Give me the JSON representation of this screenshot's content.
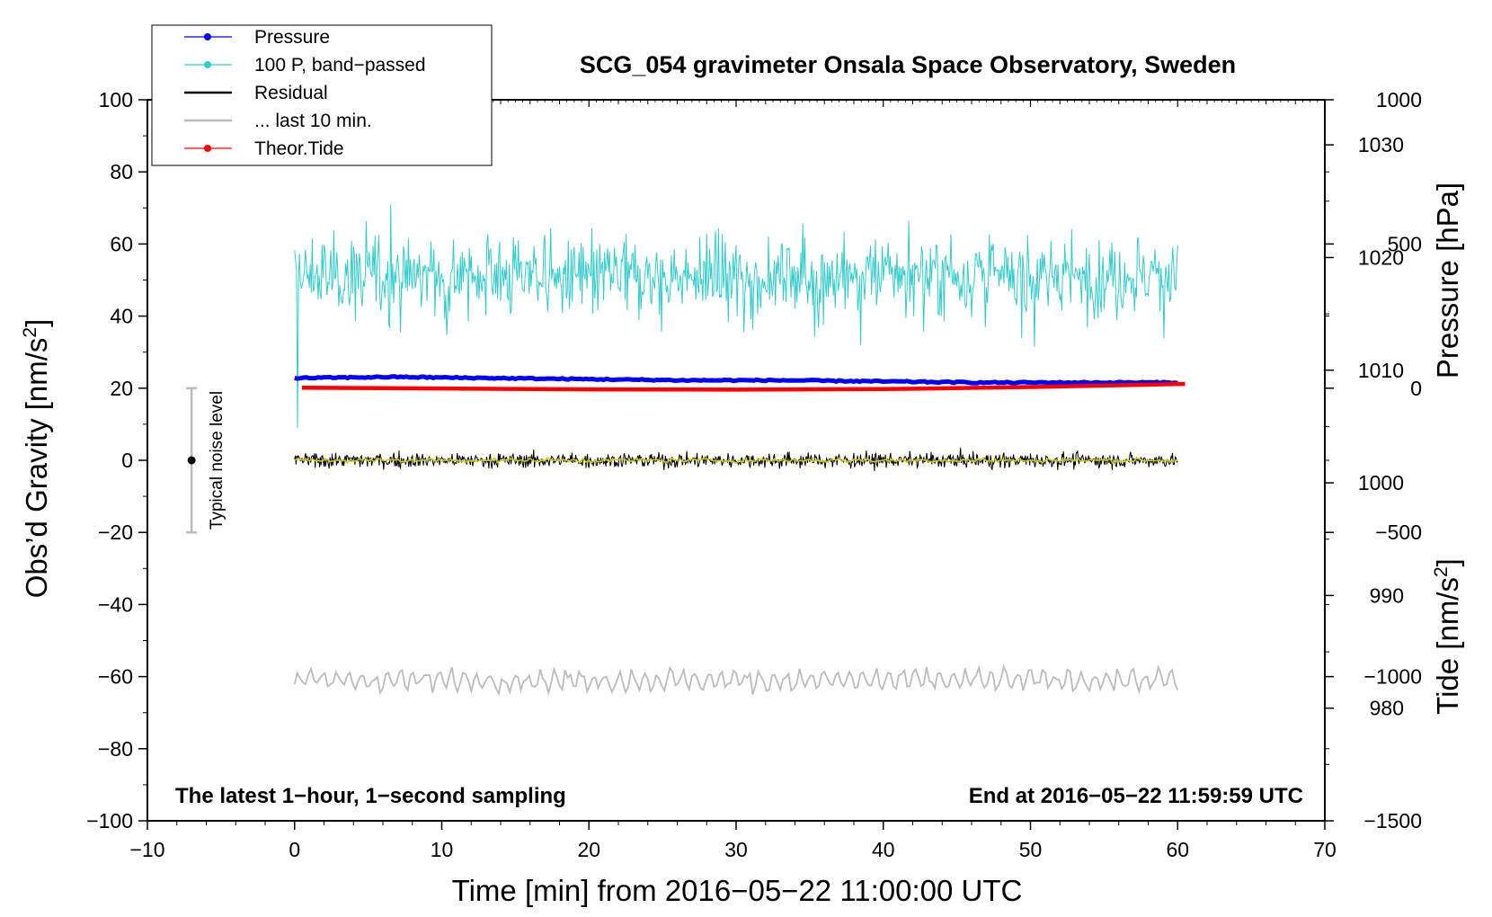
{
  "chart_data": {
    "type": "line",
    "title": "SCG_054 gravimeter Onsala Space Observatory, Sweden",
    "xlabel": "Time [min] from 2016−05−22 11:00:00 UTC",
    "ylabel_left": "Obs’d Gravity [nm/s",
    "ylabel_left_sup": "2",
    "ylabel_left_end": "]",
    "ylabel_right_pressure": "Pressure [hPa]",
    "ylabel_right_tide": "Tide [nm/s",
    "ylabel_right_tide_sup": "2",
    "ylabel_right_tide_end": "]",
    "xlim": [
      -10,
      70
    ],
    "ylim": [
      -100,
      100
    ],
    "pressure_lim": [
      970,
      1034
    ],
    "tide_lim": [
      -1500,
      1000
    ],
    "x_ticks": [
      -10,
      0,
      10,
      20,
      30,
      40,
      50,
      60,
      70
    ],
    "x_tick_labels": [
      "−10",
      "0",
      "10",
      "20",
      "30",
      "40",
      "50",
      "60",
      "70"
    ],
    "y_ticks": [
      -100,
      -80,
      -60,
      -40,
      -20,
      0,
      20,
      40,
      60,
      80,
      100
    ],
    "y_tick_labels": [
      "−100",
      "−80",
      "−60",
      "−40",
      "−20",
      "0",
      "20",
      "40",
      "60",
      "80",
      "100"
    ],
    "pressure_ticks": [
      980,
      990,
      1000,
      1010,
      1020,
      1030
    ],
    "pressure_tick_labels": [
      "980",
      "990",
      "1000",
      "1010",
      "1020",
      "1030"
    ],
    "tide_ticks": [
      -1500,
      -1000,
      -500,
      0,
      500,
      1000
    ],
    "tide_tick_labels": [
      "−1500",
      "−1000",
      "−500",
      "0",
      "500",
      "1000"
    ],
    "note_left": "The latest 1−hour, 1−second sampling",
    "note_right": "End at 2016−05−22 11:59:59 UTC",
    "noise_label": "Typical noise level",
    "noise_bar": {
      "x": -7,
      "center": 0,
      "low": -20,
      "high": 20
    },
    "legend": [
      {
        "label": "Pressure",
        "color": "#0000ff",
        "marker": true
      },
      {
        "label": "100 P, band−passed",
        "color": "#33cccc",
        "marker": true
      },
      {
        "label": "Residual",
        "color": "#000000",
        "marker": false
      },
      {
        "label": "... last 10 min.",
        "color": "#bbbbbb",
        "marker": false
      },
      {
        "label": "Theor.Tide",
        "color": "#ff0000",
        "marker": true
      }
    ],
    "series": [
      {
        "name": "Pressure",
        "color": "#0000ff",
        "axis": "pressure",
        "x_range": [
          0,
          60
        ],
        "values_hPa": [
          1009.3,
          1009.4,
          1009.3,
          1009.2,
          1009.1,
          1009.1,
          1009.0,
          1008.9,
          1008.9,
          1008.9
        ]
      },
      {
        "name": "100 P, band−passed",
        "color": "#33cccc",
        "axis": "gravity",
        "x_range": [
          0,
          60
        ],
        "mean": 51,
        "typical_range": [
          30,
          68
        ],
        "min": 9,
        "max": 71
      },
      {
        "name": "Residual",
        "color": "#000000",
        "axis": "gravity",
        "x_range": [
          0,
          60
        ],
        "mean": 0,
        "typical_range": [
          -4,
          4
        ]
      },
      {
        "name": "Residual smoothed",
        "color": "#cccc00",
        "axis": "gravity",
        "x_range": [
          0,
          60
        ],
        "mean": 0,
        "typical_range": [
          -1,
          1
        ]
      },
      {
        "name": "... last 10 min.",
        "color": "#bbbbbb",
        "axis": "gravity",
        "x_range": [
          0,
          60
        ],
        "mean": -61,
        "typical_range": [
          -65,
          -55
        ]
      },
      {
        "name": "Theor.Tide",
        "color": "#ff0000",
        "axis": "tide",
        "x": [
          0.5,
          10,
          20,
          30,
          40,
          50,
          60.5
        ],
        "values": [
          2,
          -1,
          -4,
          -5,
          -3,
          4,
          15
        ]
      }
    ]
  }
}
